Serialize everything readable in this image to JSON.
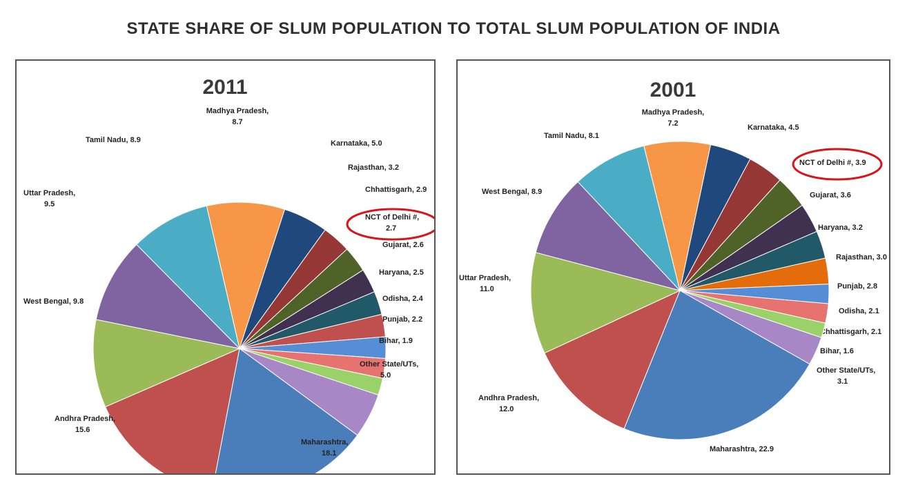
{
  "page": {
    "title": "STATE SHARE OF SLUM POPULATION TO TOTAL SLUM POPULATION OF INDIA"
  },
  "chart_data": [
    {
      "type": "pie",
      "title": "2011",
      "slices": [
        {
          "label": "Madhya Pradesh,",
          "sub": "8.7",
          "value": 8.7,
          "color": "#f79646"
        },
        {
          "label": "Karnataka, 5.0",
          "value": 5.0,
          "color": "#1f497d"
        },
        {
          "label": "Rajasthan, 3.2",
          "value": 3.2,
          "color": "#953735"
        },
        {
          "label": "Chhattisgarh, 2.9",
          "value": 2.9,
          "color": "#4f6228"
        },
        {
          "label": "NCT of Delhi #,",
          "sub": "2.7",
          "value": 2.7,
          "color": "#403151",
          "highlight": true
        },
        {
          "label": "Gujarat, 2.6",
          "value": 2.6,
          "color": "#215968"
        },
        {
          "label": "Haryana, 2.5",
          "value": 2.5,
          "color": "#c0504d",
          "alt_color": "#e46c0a"
        },
        {
          "label": "Odisha, 2.4",
          "value": 2.4,
          "color": "#558ed5"
        },
        {
          "label": "Punjab, 2.2",
          "value": 2.2,
          "color": "#e6736f"
        },
        {
          "label": "Bihar, 1.9",
          "value": 1.9,
          "color": "#9bd169"
        },
        {
          "label": "Other State/UTs,",
          "sub": "5.0",
          "value": 5.0,
          "color": "#a887c6",
          "red": true
        },
        {
          "label": "Maharashtra,",
          "sub": "18.1",
          "value": 18.1,
          "color": "#4a7ebb"
        },
        {
          "label": "Andhra Pradesh,",
          "sub": "15.6",
          "value": 15.6,
          "color": "#c0504d"
        },
        {
          "label": "West Bengal, 9.8",
          "value": 9.8,
          "color": "#9bbb59"
        },
        {
          "label": "Uttar Pradesh,",
          "sub": "9.5",
          "value": 9.5,
          "color": "#8064a2"
        },
        {
          "label": "Tamil Nadu, 8.9",
          "value": 8.9,
          "color": "#4bacc6"
        }
      ]
    },
    {
      "type": "pie",
      "title": "2001",
      "slices": [
        {
          "label": "Madhya Pradesh,",
          "sub": "7.2",
          "value": 7.2,
          "color": "#f79646"
        },
        {
          "label": "Karnataka, 4.5",
          "value": 4.5,
          "color": "#1f497d"
        },
        {
          "label": "NCT of Delhi #, 3.9",
          "value": 3.9,
          "color": "#953735",
          "highlight": true
        },
        {
          "label": "Gujarat, 3.6",
          "value": 3.6,
          "color": "#4f6228"
        },
        {
          "label": "Haryana, 3.2",
          "value": 3.2,
          "color": "#403151"
        },
        {
          "label": "Rajasthan, 3.0",
          "value": 3.0,
          "color": "#215968"
        },
        {
          "label": "Punjab, 2.8",
          "value": 2.8,
          "color": "#e46c0a"
        },
        {
          "label": "Odisha, 2.1",
          "value": 2.1,
          "color": "#558ed5"
        },
        {
          "label": "Chhattisgarh, 2.1",
          "value": 2.1,
          "color": "#e6736f"
        },
        {
          "label": "Bihar, 1.6",
          "value": 1.6,
          "color": "#9bd169"
        },
        {
          "label": "Other State/UTs,",
          "sub": "3.1",
          "value": 3.1,
          "color": "#a887c6",
          "red": true
        },
        {
          "label": "Maharashtra, 22.9",
          "value": 22.9,
          "color": "#4a7ebb"
        },
        {
          "label": "Andhra Pradesh,",
          "sub": "12.0",
          "value": 12.0,
          "color": "#c0504d"
        },
        {
          "label": "Uttar Pradesh,",
          "sub": "11.0",
          "value": 11.0,
          "color": "#9bbb59"
        },
        {
          "label": "West Bengal, 8.9",
          "value": 8.9,
          "color": "#8064a2"
        },
        {
          "label": "Tamil Nadu, 8.1",
          "value": 8.1,
          "color": "#4bacc6"
        }
      ]
    }
  ]
}
